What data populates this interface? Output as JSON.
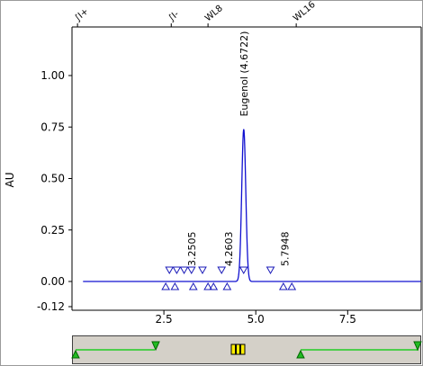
{
  "chart_data": {
    "type": "line",
    "ylabel": "AU",
    "xlabel": "",
    "xlim": [
      0,
      9.5
    ],
    "ylim": [
      -0.12,
      1.25
    ],
    "x_ticks": [
      "2.5",
      "5.0",
      "7.5"
    ],
    "x_tick_values": [
      2.5,
      5.0,
      7.5
    ],
    "y_ticks": [
      "-0.12",
      "0.00",
      "0.25",
      "0.50",
      "0.75",
      "1.00"
    ],
    "y_tick_values": [
      -0.12,
      0.0,
      0.25,
      0.5,
      0.75,
      1.0
    ],
    "series": [
      {
        "line_color": "#1010d0",
        "peak_center": 4.6722,
        "peak_height": 0.74,
        "baseline": 0.0,
        "x_range": [
          0.3,
          9.5
        ]
      }
    ],
    "peak_labels": [
      {
        "text": "Eugenol (4.6722)",
        "x": 4.6722,
        "y": 0.74
      },
      {
        "text": "3.2505",
        "x": 3.2505,
        "y": 0.0
      },
      {
        "text": "4.2603",
        "x": 4.2603,
        "y": 0.0
      },
      {
        "text": "5.7948",
        "x": 5.7948,
        "y": 0.0
      }
    ],
    "peak_markers_down": [
      2.65,
      2.85,
      3.05,
      3.25,
      3.55,
      4.07,
      4.67,
      5.4
    ],
    "peak_markers_up": [
      2.55,
      2.8,
      3.3,
      3.7,
      3.85,
      4.22,
      5.75,
      5.98
    ],
    "event_markers": [
      {
        "label": "∫I+",
        "x": 0.15
      },
      {
        "label": "∫I-",
        "x": 2.7
      },
      {
        "label": "WL8",
        "x": 3.7
      },
      {
        "label": "WL16",
        "x": 6.1
      }
    ],
    "colors": {
      "marker": "#1a1ab8",
      "axis": "#000000",
      "scroll_line": "#22cc22",
      "scroll_triangle": "#22bb22",
      "scroll_thumb": "#ffee00"
    }
  }
}
